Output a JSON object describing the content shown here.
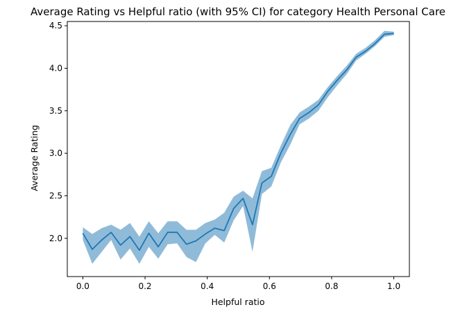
{
  "chart_data": {
    "type": "line",
    "title": "Average Rating vs Helpful ratio (with 95% CI) for category Health Personal Care",
    "xlabel": "Helpful ratio",
    "ylabel": "Average Rating",
    "xlim": [
      -0.05,
      1.05
    ],
    "ylim": [
      1.55,
      4.55
    ],
    "xticks": [
      0.0,
      0.2,
      0.4,
      0.6,
      0.8,
      1.0
    ],
    "xtick_labels": [
      "0.0",
      "0.2",
      "0.4",
      "0.6",
      "0.8",
      "1.0"
    ],
    "yticks": [
      2.0,
      2.5,
      3.0,
      3.5,
      4.0,
      4.5
    ],
    "ytick_labels": [
      "2.0",
      "2.5",
      "3.0",
      "3.5",
      "4.0",
      "4.5"
    ],
    "grid": false,
    "legend": "none",
    "line_color": "#1f77b4",
    "band_color": "#1f77b4",
    "series": [
      {
        "x": [
          0.0,
          0.0303,
          0.0606,
          0.0909,
          0.1212,
          0.1515,
          0.1818,
          0.2121,
          0.2424,
          0.2727,
          0.303,
          0.3333,
          0.3636,
          0.3939,
          0.4242,
          0.4545,
          0.4848,
          0.5152,
          0.5455,
          0.5758,
          0.6061,
          0.6364,
          0.6667,
          0.697,
          0.7273,
          0.7576,
          0.7879,
          0.8182,
          0.8485,
          0.8788,
          0.9091,
          0.9394,
          0.9697,
          1.0
        ],
        "y": [
          2.06,
          1.87,
          1.98,
          2.07,
          1.92,
          2.02,
          1.86,
          2.06,
          1.9,
          2.07,
          2.07,
          1.93,
          1.97,
          2.05,
          2.12,
          2.09,
          2.35,
          2.47,
          2.16,
          2.65,
          2.73,
          3.0,
          3.22,
          3.41,
          3.48,
          3.57,
          3.73,
          3.86,
          3.98,
          4.13,
          4.2,
          4.29,
          4.4,
          4.41
        ],
        "lower": [
          1.98,
          1.7,
          1.84,
          1.98,
          1.75,
          1.88,
          1.7,
          1.9,
          1.76,
          1.93,
          1.94,
          1.78,
          1.72,
          1.94,
          2.04,
          1.95,
          2.21,
          2.38,
          1.84,
          2.52,
          2.61,
          2.89,
          3.1,
          3.34,
          3.41,
          3.5,
          3.66,
          3.8,
          3.93,
          4.09,
          4.17,
          4.26,
          4.37,
          4.39
        ],
        "upper": [
          2.13,
          2.05,
          2.12,
          2.16,
          2.1,
          2.18,
          2.02,
          2.2,
          2.06,
          2.2,
          2.2,
          2.1,
          2.1,
          2.18,
          2.22,
          2.3,
          2.49,
          2.56,
          2.47,
          2.79,
          2.83,
          3.09,
          3.33,
          3.48,
          3.55,
          3.63,
          3.78,
          3.91,
          4.03,
          4.17,
          4.24,
          4.33,
          4.44,
          4.43
        ]
      }
    ]
  }
}
